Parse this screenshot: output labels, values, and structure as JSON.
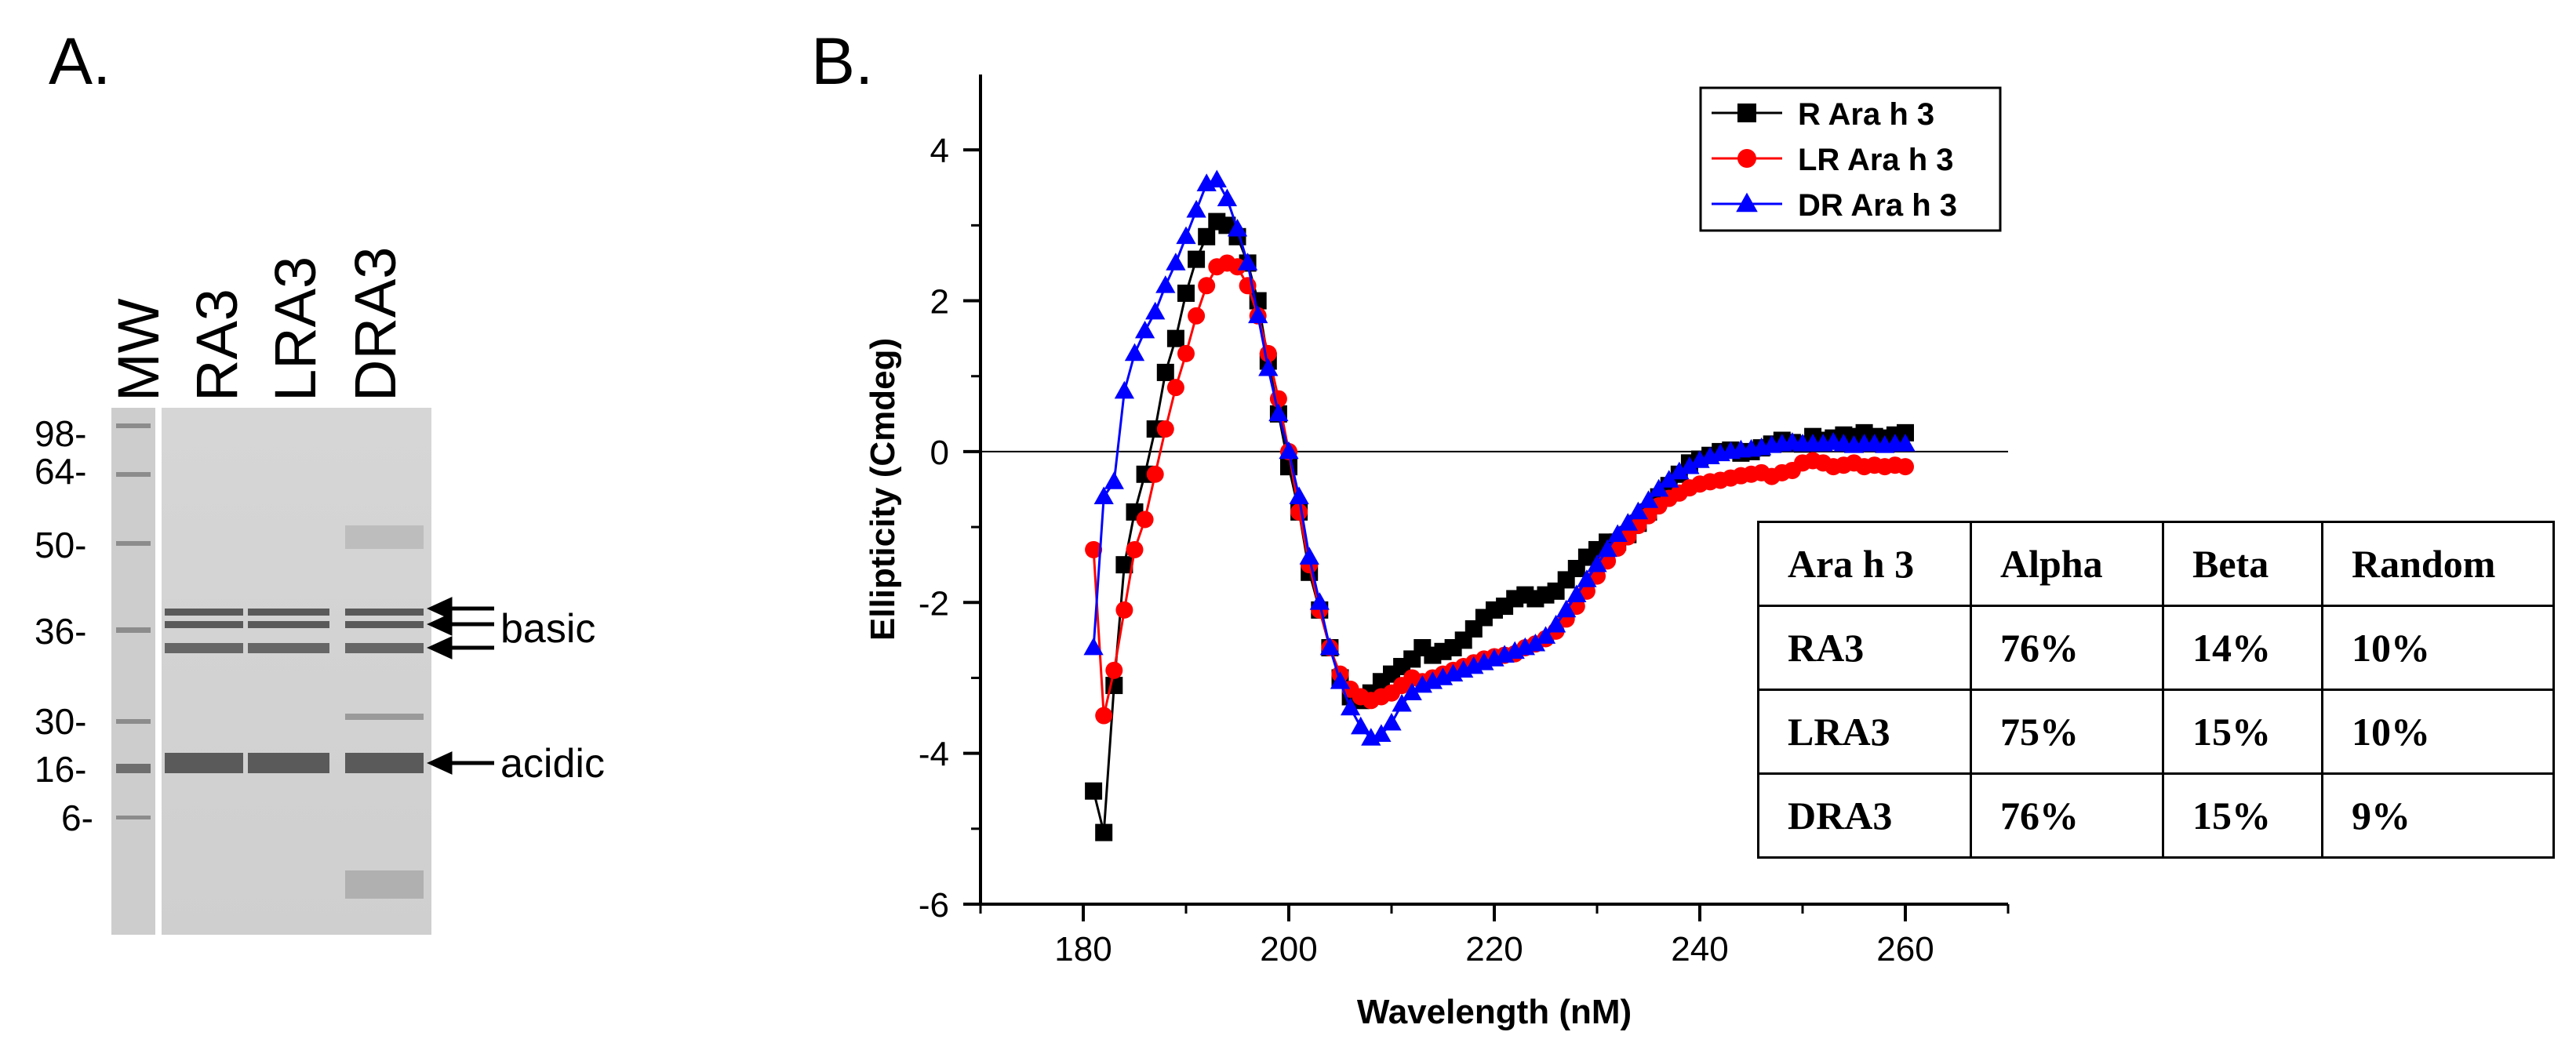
{
  "panel_a": {
    "label": "A.",
    "lanes": [
      "MW",
      "RA3",
      "LRA3",
      "DRA3"
    ],
    "mw_markers": [
      "98-",
      "64-",
      "50-",
      "36-",
      "30-",
      "16-",
      "6-"
    ],
    "annotations": {
      "basic": "basic",
      "acidic": "acidic"
    }
  },
  "panel_b": {
    "label": "B.",
    "table": {
      "headers": [
        "Ara h 3",
        "Alpha",
        "Beta",
        "Random"
      ],
      "rows": [
        [
          "RA3",
          "76%",
          "14%",
          "10%"
        ],
        [
          "LRA3",
          "75%",
          "15%",
          "10%"
        ],
        [
          "DRA3",
          "76%",
          "15%",
          "9%"
        ]
      ]
    }
  },
  "colors": {
    "r": "#000000",
    "lr": "#ff0000",
    "dr": "#0000ff",
    "gel_bg": "#d2d2d2",
    "band": "#5a5a5a"
  },
  "chart_data": {
    "type": "line",
    "title": "",
    "xlabel": "Wavelength (nM)",
    "ylabel": "Ellipticity (Cmdeg)",
    "xlim": [
      170,
      270
    ],
    "ylim": [
      -6,
      5
    ],
    "xticks": [
      180,
      200,
      220,
      240,
      260
    ],
    "yticks": [
      -6,
      -4,
      -2,
      0,
      2,
      4
    ],
    "legend_position": "top-right",
    "series": [
      {
        "name": "R Ara h 3",
        "color": "#000000",
        "marker": "square",
        "x": [
          181,
          182,
          183,
          184,
          185,
          186,
          187,
          188,
          189,
          190,
          191,
          192,
          193,
          194,
          195,
          196,
          197,
          198,
          199,
          200,
          201,
          202,
          203,
          204,
          205,
          206,
          207,
          208,
          209,
          210,
          211,
          212,
          213,
          214,
          215,
          216,
          217,
          218,
          219,
          220,
          221,
          222,
          223,
          224,
          225,
          226,
          227,
          228,
          229,
          230,
          231,
          232,
          233,
          234,
          235,
          236,
          237,
          238,
          239,
          240,
          241,
          242,
          243,
          244,
          245,
          246,
          247,
          248,
          249,
          250,
          251,
          252,
          253,
          254,
          255,
          256,
          257,
          258,
          259,
          260
        ],
        "y": [
          -4.5,
          -5.05,
          -3.1,
          -1.5,
          -0.8,
          -0.3,
          0.3,
          1.05,
          1.5,
          2.1,
          2.55,
          2.85,
          3.05,
          3.0,
          2.85,
          2.5,
          2.0,
          1.2,
          0.5,
          -0.2,
          -0.8,
          -1.6,
          -2.1,
          -2.6,
          -3.0,
          -3.25,
          -3.3,
          -3.2,
          -3.05,
          -2.95,
          -2.85,
          -2.75,
          -2.6,
          -2.7,
          -2.65,
          -2.6,
          -2.5,
          -2.35,
          -2.2,
          -2.1,
          -2.05,
          -1.95,
          -1.9,
          -1.95,
          -1.9,
          -1.85,
          -1.7,
          -1.55,
          -1.4,
          -1.3,
          -1.2,
          -1.2,
          -1.1,
          -0.95,
          -0.8,
          -0.6,
          -0.45,
          -0.3,
          -0.15,
          -0.1,
          -0.05,
          0.0,
          0.02,
          -0.02,
          0.0,
          0.05,
          0.1,
          0.15,
          0.12,
          0.1,
          0.2,
          0.15,
          0.18,
          0.22,
          0.2,
          0.25,
          0.2,
          0.18,
          0.22,
          0.25
        ]
      },
      {
        "name": "LR Ara h 3",
        "color": "#ff0000",
        "marker": "circle",
        "x": [
          181,
          182,
          183,
          184,
          185,
          186,
          187,
          188,
          189,
          190,
          191,
          192,
          193,
          194,
          195,
          196,
          197,
          198,
          199,
          200,
          201,
          202,
          203,
          204,
          205,
          206,
          207,
          208,
          209,
          210,
          211,
          212,
          213,
          214,
          215,
          216,
          217,
          218,
          219,
          220,
          221,
          222,
          223,
          224,
          225,
          226,
          227,
          228,
          229,
          230,
          231,
          232,
          233,
          234,
          235,
          236,
          237,
          238,
          239,
          240,
          241,
          242,
          243,
          244,
          245,
          246,
          247,
          248,
          249,
          250,
          251,
          252,
          253,
          254,
          255,
          256,
          257,
          258,
          259,
          260
        ],
        "y": [
          -1.3,
          -3.5,
          -2.9,
          -2.1,
          -1.3,
          -0.9,
          -0.3,
          0.3,
          0.85,
          1.3,
          1.8,
          2.2,
          2.45,
          2.5,
          2.45,
          2.2,
          1.8,
          1.3,
          0.7,
          0.0,
          -0.8,
          -1.5,
          -2.1,
          -2.6,
          -2.95,
          -3.15,
          -3.25,
          -3.3,
          -3.25,
          -3.2,
          -3.1,
          -3.0,
          -3.05,
          -3.0,
          -2.95,
          -2.9,
          -2.85,
          -2.8,
          -2.75,
          -2.72,
          -2.7,
          -2.68,
          -2.6,
          -2.55,
          -2.48,
          -2.38,
          -2.22,
          -2.05,
          -1.85,
          -1.65,
          -1.45,
          -1.28,
          -1.13,
          -0.98,
          -0.85,
          -0.72,
          -0.62,
          -0.55,
          -0.48,
          -0.43,
          -0.4,
          -0.38,
          -0.35,
          -0.32,
          -0.3,
          -0.28,
          -0.33,
          -0.28,
          -0.25,
          -0.15,
          -0.12,
          -0.15,
          -0.2,
          -0.18,
          -0.15,
          -0.2,
          -0.18,
          -0.2,
          -0.18,
          -0.2
        ]
      },
      {
        "name": "DR Ara h 3",
        "color": "#0000ff",
        "marker": "triangle",
        "x": [
          181,
          182,
          183,
          184,
          185,
          186,
          187,
          188,
          189,
          190,
          191,
          192,
          193,
          194,
          195,
          196,
          197,
          198,
          199,
          200,
          201,
          202,
          203,
          204,
          205,
          206,
          207,
          208,
          209,
          210,
          211,
          212,
          213,
          214,
          215,
          216,
          217,
          218,
          219,
          220,
          221,
          222,
          223,
          224,
          225,
          226,
          227,
          228,
          229,
          230,
          231,
          232,
          233,
          234,
          235,
          236,
          237,
          238,
          239,
          240,
          241,
          242,
          243,
          244,
          245,
          246,
          247,
          248,
          249,
          250,
          251,
          252,
          253,
          254,
          255,
          256,
          257,
          258,
          259,
          260
        ],
        "y": [
          -2.6,
          -0.6,
          -0.4,
          0.8,
          1.3,
          1.6,
          1.85,
          2.2,
          2.5,
          2.85,
          3.2,
          3.55,
          3.6,
          3.35,
          2.95,
          2.5,
          1.8,
          1.1,
          0.5,
          0.0,
          -0.6,
          -1.4,
          -2.0,
          -2.6,
          -3.05,
          -3.4,
          -3.65,
          -3.8,
          -3.75,
          -3.6,
          -3.35,
          -3.2,
          -3.1,
          -3.05,
          -3.0,
          -2.95,
          -2.9,
          -2.85,
          -2.8,
          -2.75,
          -2.7,
          -2.65,
          -2.6,
          -2.55,
          -2.45,
          -2.3,
          -2.1,
          -1.9,
          -1.7,
          -1.5,
          -1.3,
          -1.1,
          -0.95,
          -0.8,
          -0.65,
          -0.5,
          -0.38,
          -0.27,
          -0.2,
          -0.12,
          -0.07,
          -0.03,
          0.0,
          0.02,
          0.03,
          0.05,
          0.08,
          0.1,
          0.12,
          0.1,
          0.1,
          0.1,
          0.12,
          0.1,
          0.08,
          0.1,
          0.1,
          0.08,
          0.1,
          0.1
        ]
      }
    ]
  }
}
